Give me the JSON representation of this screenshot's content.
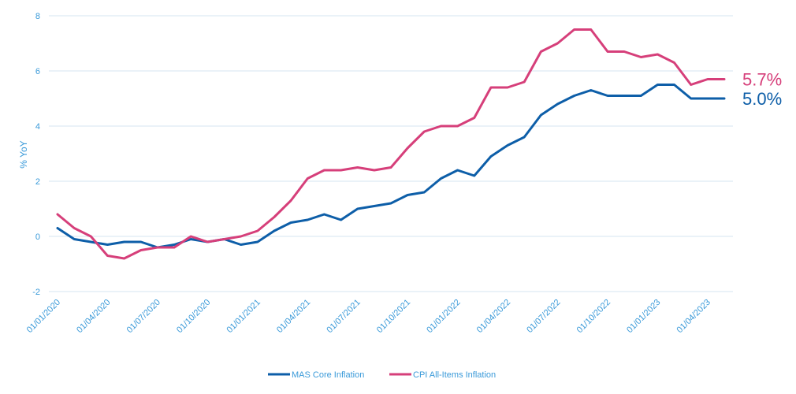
{
  "chart_data": {
    "type": "line",
    "ylabel": "% YoY",
    "ylim": [
      -2,
      8
    ],
    "yticks": [
      "-2",
      "0",
      "2",
      "4",
      "6",
      "8"
    ],
    "y_tick_values": [
      -2,
      0,
      2,
      4,
      6,
      8
    ],
    "grid": true,
    "legend_position": "bottom",
    "x": [
      "01/01/2020",
      "01/02/2020",
      "01/03/2020",
      "01/04/2020",
      "01/05/2020",
      "01/06/2020",
      "01/07/2020",
      "01/08/2020",
      "01/09/2020",
      "01/10/2020",
      "01/11/2020",
      "01/12/2020",
      "01/01/2021",
      "01/02/2021",
      "01/03/2021",
      "01/04/2021",
      "01/05/2021",
      "01/06/2021",
      "01/07/2021",
      "01/08/2021",
      "01/09/2021",
      "01/10/2021",
      "01/11/2021",
      "01/12/2021",
      "01/01/2022",
      "01/02/2022",
      "01/03/2022",
      "01/04/2022",
      "01/05/2022",
      "01/06/2022",
      "01/07/2022",
      "01/08/2022",
      "01/09/2022",
      "01/10/2022",
      "01/11/2022",
      "01/12/2022",
      "01/01/2023",
      "01/02/2023",
      "01/03/2023",
      "01/04/2023",
      "01/05/2023"
    ],
    "x_tick_labels": [
      "01/01/2020",
      "01/04/2020",
      "01/07/2020",
      "01/10/2020",
      "01/01/2021",
      "01/04/2021",
      "01/07/2021",
      "01/10/2021",
      "01/01/2022",
      "01/04/2022",
      "01/07/2022",
      "01/10/2022",
      "01/01/2023",
      "01/04/2023"
    ],
    "series": [
      {
        "name": "MAS Core Inflation",
        "color": "#0d5ea8",
        "values": [
          0.3,
          -0.1,
          -0.2,
          -0.3,
          -0.2,
          -0.2,
          -0.4,
          -0.3,
          -0.1,
          -0.2,
          -0.1,
          -0.3,
          -0.2,
          0.2,
          0.5,
          0.6,
          0.8,
          0.6,
          1.0,
          1.1,
          1.2,
          1.5,
          1.6,
          2.1,
          2.4,
          2.2,
          2.9,
          3.3,
          3.6,
          4.4,
          4.8,
          5.1,
          5.3,
          5.1,
          5.1,
          5.1,
          5.5,
          5.5,
          5.0,
          5.0,
          5.0
        ],
        "end_label": "5.0%"
      },
      {
        "name": "CPI All-Items Inflation",
        "color": "#d63f7a",
        "values": [
          0.8,
          0.3,
          0.0,
          -0.7,
          -0.8,
          -0.5,
          -0.4,
          -0.4,
          0.0,
          -0.2,
          -0.1,
          0.0,
          0.2,
          0.7,
          1.3,
          2.1,
          2.4,
          2.4,
          2.5,
          2.4,
          2.5,
          3.2,
          3.8,
          4.0,
          4.0,
          4.3,
          5.4,
          5.4,
          5.6,
          6.7,
          7.0,
          7.5,
          7.5,
          6.7,
          6.7,
          6.5,
          6.6,
          6.3,
          5.5,
          5.7,
          5.7
        ],
        "end_label": "5.7%"
      }
    ]
  }
}
